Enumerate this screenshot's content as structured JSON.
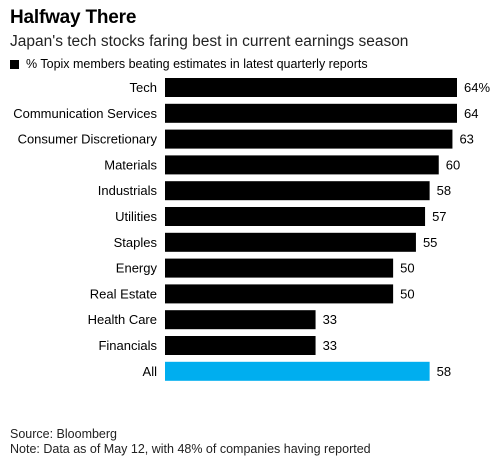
{
  "header": {
    "title": "Halfway There",
    "subtitle": "Japan's tech stocks faring best in current earnings season"
  },
  "legend": {
    "label": "% Topix members beating estimates in latest quarterly reports",
    "color": "#000000"
  },
  "footer": {
    "source": "Source: Bloomberg",
    "note": "Note: Data as of May 12, with 48% of companies having reported"
  },
  "chart_data": {
    "type": "bar",
    "orientation": "horizontal",
    "categories": [
      "Tech",
      "Communication Services",
      "Consumer Discretionary",
      "Materials",
      "Industrials",
      "Utilities",
      "Staples",
      "Energy",
      "Real Estate",
      "Health Care",
      "Financials",
      "All"
    ],
    "values": [
      64,
      64,
      63,
      60,
      58,
      57,
      55,
      50,
      50,
      33,
      33,
      58
    ],
    "value_labels": [
      "64%",
      "64",
      "63",
      "60",
      "58",
      "57",
      "55",
      "50",
      "50",
      "33",
      "33",
      "58"
    ],
    "colors": [
      "#000000",
      "#000000",
      "#000000",
      "#000000",
      "#000000",
      "#000000",
      "#000000",
      "#000000",
      "#000000",
      "#000000",
      "#000000",
      "#00aeef"
    ],
    "xlim": [
      0,
      64
    ],
    "grid": false,
    "legend_position": "top-left"
  }
}
